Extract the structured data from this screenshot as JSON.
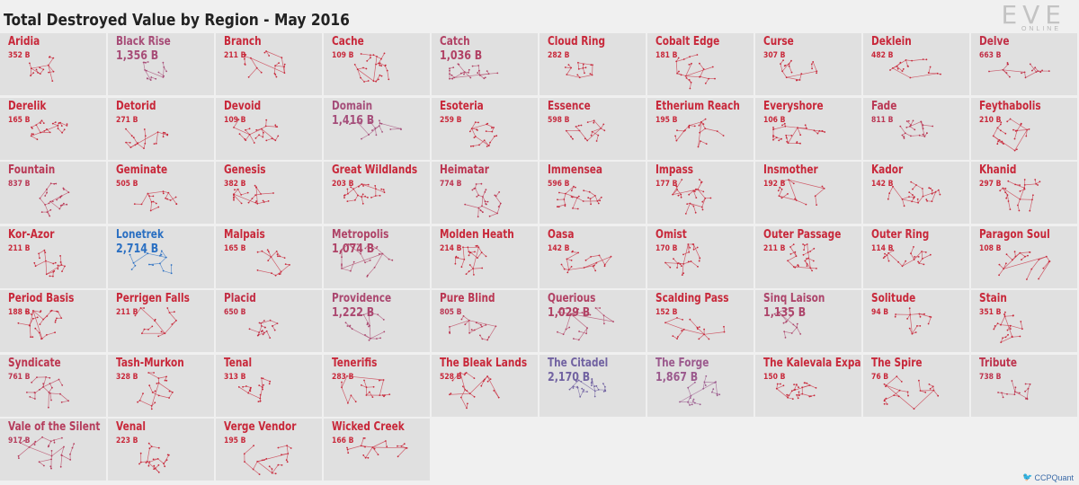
{
  "header": {
    "title": "Total Destroyed Value by Region - May 2016"
  },
  "logo": {
    "word": "EVE",
    "sub": "ONLINE"
  },
  "credit": {
    "handle": "CCPQuant"
  },
  "colors": {
    "low": "#c8283a",
    "high": "#2a6fc2",
    "mid": "#9a5a8e",
    "title": "#222222"
  },
  "chart_data": {
    "type": "table",
    "title": "Total Destroyed Value by Region - May 2016",
    "unit": "B",
    "regions": [
      {
        "name": "Aridia",
        "value": "352 B",
        "amount": 352
      },
      {
        "name": "Black Rise",
        "value": "1,356 B",
        "amount": 1356
      },
      {
        "name": "Branch",
        "value": "211 B",
        "amount": 211
      },
      {
        "name": "Cache",
        "value": "109 B",
        "amount": 109
      },
      {
        "name": "Catch",
        "value": "1,036 B",
        "amount": 1036
      },
      {
        "name": "Cloud Ring",
        "value": "282 B",
        "amount": 282
      },
      {
        "name": "Cobalt Edge",
        "value": "181 B",
        "amount": 181
      },
      {
        "name": "Curse",
        "value": "307 B",
        "amount": 307
      },
      {
        "name": "Deklein",
        "value": "482 B",
        "amount": 482
      },
      {
        "name": "Delve",
        "value": "663 B",
        "amount": 663
      },
      {
        "name": "Derelik",
        "value": "165 B",
        "amount": 165
      },
      {
        "name": "Detorid",
        "value": "271 B",
        "amount": 271
      },
      {
        "name": "Devoid",
        "value": "109 B",
        "amount": 109
      },
      {
        "name": "Domain",
        "value": "1,416 B",
        "amount": 1416
      },
      {
        "name": "Esoteria",
        "value": "259 B",
        "amount": 259
      },
      {
        "name": "Essence",
        "value": "598 B",
        "amount": 598
      },
      {
        "name": "Etherium Reach",
        "value": "195 B",
        "amount": 195
      },
      {
        "name": "Everyshore",
        "value": "106 B",
        "amount": 106
      },
      {
        "name": "Fade",
        "value": "811 B",
        "amount": 811
      },
      {
        "name": "Feythabolis",
        "value": "210 B",
        "amount": 210
      },
      {
        "name": "Fountain",
        "value": "837 B",
        "amount": 837
      },
      {
        "name": "Geminate",
        "value": "505 B",
        "amount": 505
      },
      {
        "name": "Genesis",
        "value": "382 B",
        "amount": 382
      },
      {
        "name": "Great Wildlands",
        "value": "203 B",
        "amount": 203
      },
      {
        "name": "Heimatar",
        "value": "774 B",
        "amount": 774
      },
      {
        "name": "Immensea",
        "value": "596 B",
        "amount": 596
      },
      {
        "name": "Impass",
        "value": "177 B",
        "amount": 177
      },
      {
        "name": "Insmother",
        "value": "192 B",
        "amount": 192
      },
      {
        "name": "Kador",
        "value": "142 B",
        "amount": 142
      },
      {
        "name": "Khanid",
        "value": "297 B",
        "amount": 297
      },
      {
        "name": "Kor-Azor",
        "value": "211 B",
        "amount": 211
      },
      {
        "name": "Lonetrek",
        "value": "2,714 B",
        "amount": 2714
      },
      {
        "name": "Malpais",
        "value": "165 B",
        "amount": 165
      },
      {
        "name": "Metropolis",
        "value": "1,074 B",
        "amount": 1074
      },
      {
        "name": "Molden Heath",
        "value": "214 B",
        "amount": 214
      },
      {
        "name": "Oasa",
        "value": "142 B",
        "amount": 142
      },
      {
        "name": "Omist",
        "value": "170 B",
        "amount": 170
      },
      {
        "name": "Outer Passage",
        "value": "211 B",
        "amount": 211
      },
      {
        "name": "Outer Ring",
        "value": "114 B",
        "amount": 114
      },
      {
        "name": "Paragon Soul",
        "value": "108 B",
        "amount": 108
      },
      {
        "name": "Period Basis",
        "value": "188 B",
        "amount": 188
      },
      {
        "name": "Perrigen Falls",
        "value": "211 B",
        "amount": 211
      },
      {
        "name": "Placid",
        "value": "650 B",
        "amount": 650
      },
      {
        "name": "Providence",
        "value": "1,222 B",
        "amount": 1222
      },
      {
        "name": "Pure Blind",
        "value": "805 B",
        "amount": 805
      },
      {
        "name": "Querious",
        "value": "1,029 B",
        "amount": 1029
      },
      {
        "name": "Scalding Pass",
        "value": "152 B",
        "amount": 152
      },
      {
        "name": "Sinq Laison",
        "value": "1,135 B",
        "amount": 1135
      },
      {
        "name": "Solitude",
        "value": "94 B",
        "amount": 94
      },
      {
        "name": "Stain",
        "value": "351 B",
        "amount": 351
      },
      {
        "name": "Syndicate",
        "value": "761 B",
        "amount": 761
      },
      {
        "name": "Tash-Murkon",
        "value": "328 B",
        "amount": 328
      },
      {
        "name": "Tenal",
        "value": "313 B",
        "amount": 313
      },
      {
        "name": "Tenerifis",
        "value": "283 B",
        "amount": 283
      },
      {
        "name": "The Bleak Lands",
        "value": "528 B",
        "amount": 528
      },
      {
        "name": "The Citadel",
        "value": "2,170 B",
        "amount": 2170
      },
      {
        "name": "The Forge",
        "value": "1,867 B",
        "amount": 1867
      },
      {
        "name": "The Kalevala Expanse",
        "value": "150 B",
        "amount": 150
      },
      {
        "name": "The Spire",
        "value": "76 B",
        "amount": 76
      },
      {
        "name": "Tribute",
        "value": "738 B",
        "amount": 738
      },
      {
        "name": "Vale of the Silent",
        "value": "917 B",
        "amount": 917
      },
      {
        "name": "Venal",
        "value": "223 B",
        "amount": 223
      },
      {
        "name": "Verge Vendor",
        "value": "195 B",
        "amount": 195
      },
      {
        "name": "Wicked Creek",
        "value": "166 B",
        "amount": 166
      }
    ]
  }
}
